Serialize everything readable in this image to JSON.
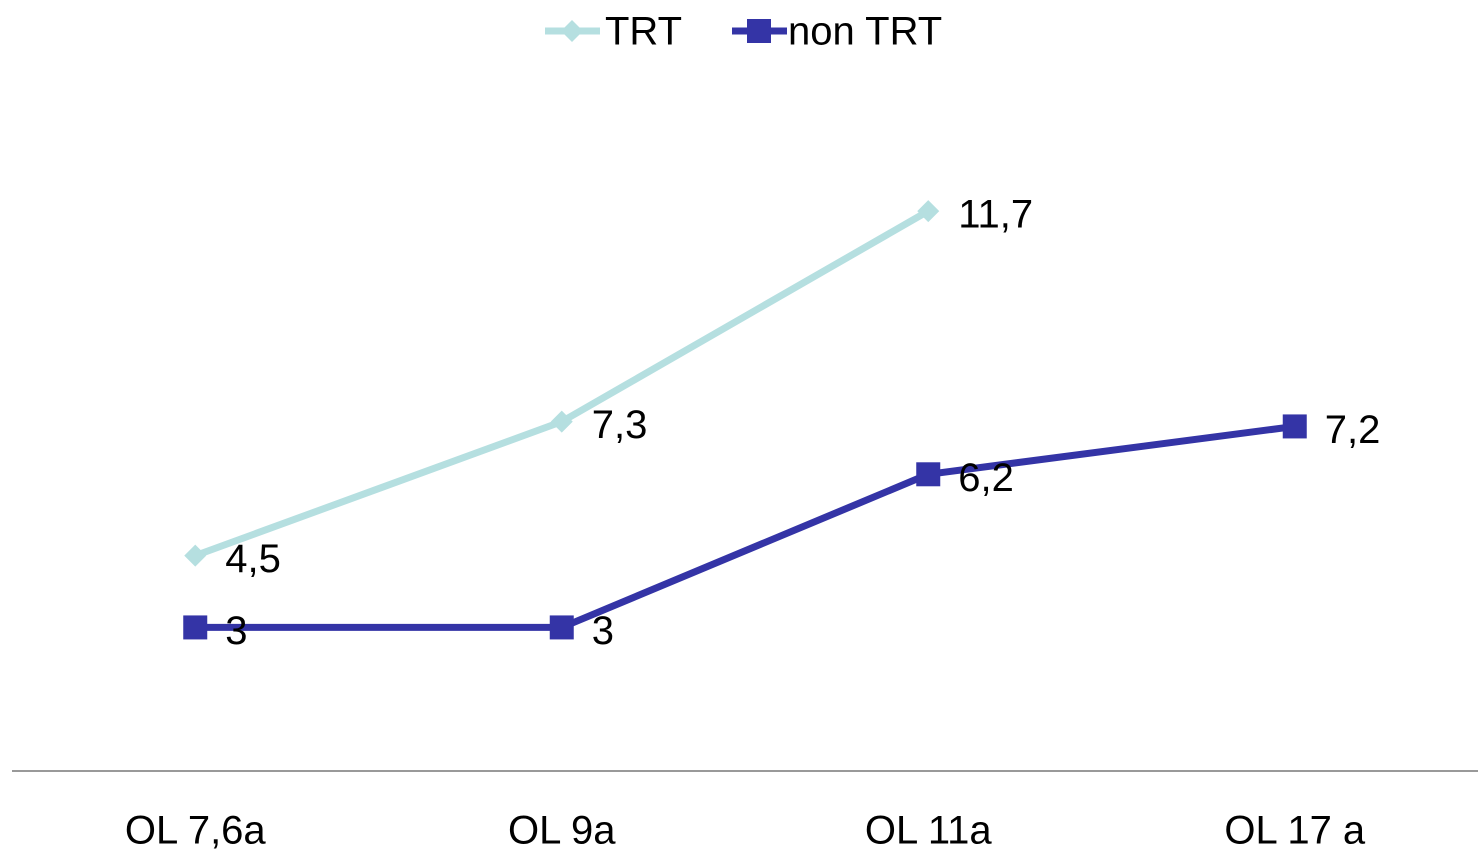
{
  "chart_data": {
    "type": "line",
    "categories": [
      "OL 7,6a",
      "OL 9a",
      "OL 11a",
      "OL 17 a"
    ],
    "series": [
      {
        "name": "TRT",
        "color": "#b5dfe0",
        "marker": "diamond",
        "values": [
          4.5,
          7.3,
          11.7,
          null
        ],
        "value_labels": [
          "4,5",
          "7,3",
          "11,7",
          null
        ]
      },
      {
        "name": "non TRT",
        "color": "#3434a6",
        "marker": "square",
        "values": [
          3,
          3,
          6.2,
          7.2
        ],
        "value_labels": [
          "3",
          "3",
          "6,2",
          "7,2"
        ]
      }
    ],
    "ylim": [
      0,
      14
    ],
    "legend": "top"
  }
}
